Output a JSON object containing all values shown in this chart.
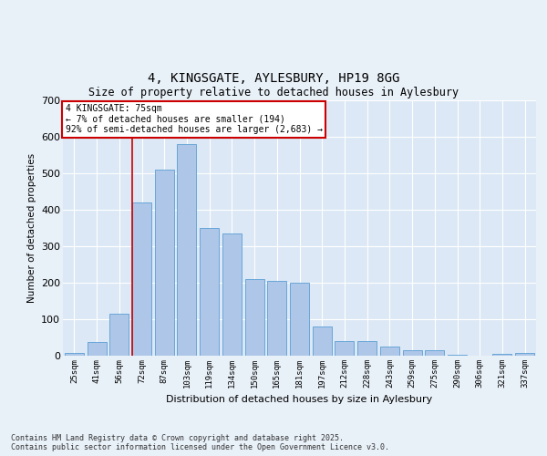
{
  "title_line1": "4, KINGSGATE, AYLESBURY, HP19 8GG",
  "title_line2": "Size of property relative to detached houses in Aylesbury",
  "xlabel": "Distribution of detached houses by size in Aylesbury",
  "ylabel": "Number of detached properties",
  "categories": [
    "25sqm",
    "41sqm",
    "56sqm",
    "72sqm",
    "87sqm",
    "103sqm",
    "119sqm",
    "134sqm",
    "150sqm",
    "165sqm",
    "181sqm",
    "197sqm",
    "212sqm",
    "228sqm",
    "243sqm",
    "259sqm",
    "275sqm",
    "290sqm",
    "306sqm",
    "321sqm",
    "337sqm"
  ],
  "values": [
    8,
    38,
    115,
    420,
    510,
    580,
    350,
    335,
    210,
    205,
    200,
    80,
    40,
    40,
    25,
    15,
    15,
    2,
    0,
    5,
    7
  ],
  "bar_color": "#aec6e8",
  "bar_edge_color": "#5a9fd4",
  "ylim": [
    0,
    700
  ],
  "yticks": [
    0,
    100,
    200,
    300,
    400,
    500,
    600,
    700
  ],
  "marker_index": 3,
  "marker_line_color": "#cc0000",
  "annotation_line1": "4 KINGSGATE: 75sqm",
  "annotation_line2": "← 7% of detached houses are smaller (194)",
  "annotation_line3": "92% of semi-detached houses are larger (2,683) →",
  "annotation_box_color": "#cc0000",
  "footer_line1": "Contains HM Land Registry data © Crown copyright and database right 2025.",
  "footer_line2": "Contains public sector information licensed under the Open Government Licence v3.0.",
  "bg_color": "#dce8f5",
  "fig_bg_color": "#e8f0f8",
  "grid_color": "#ffffff"
}
